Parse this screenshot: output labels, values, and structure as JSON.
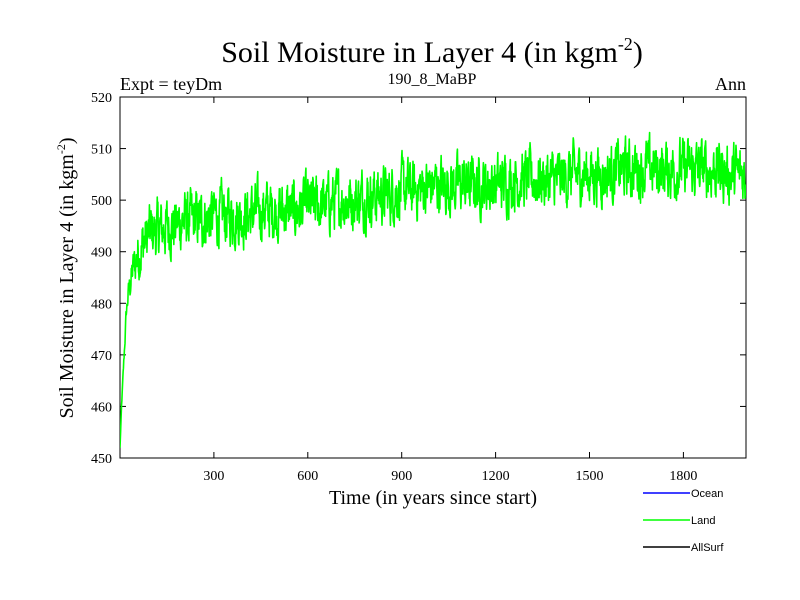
{
  "chart_data": {
    "type": "line",
    "title_main": "Soil Moisture in Layer 4 (in kgm",
    "title_sup": "-2",
    "title_close": ")",
    "subtitle_left": "Expt = teyDm",
    "subtitle_center": "190_8_MaBP",
    "subtitle_right": "Ann",
    "xlabel": "Time (in years since start)",
    "ylabel_main": "Soil Moisture in Layer 4 (in kgm",
    "ylabel_sup": "-2",
    "ylabel_close": ")",
    "xlim": [
      0,
      2000
    ],
    "ylim": [
      450,
      520
    ],
    "xticks": [
      300,
      600,
      900,
      1200,
      1500,
      1800
    ],
    "xtick_labels": [
      "300",
      "600",
      "900",
      "1200",
      "1500",
      "1800"
    ],
    "yticks": [
      450,
      460,
      470,
      480,
      490,
      500,
      510,
      520
    ],
    "ytick_labels": [
      "450",
      "460",
      "470",
      "480",
      "490",
      "500",
      "510",
      "520"
    ],
    "legend": [
      {
        "name": "Ocean",
        "color": "#0000ff"
      },
      {
        "name": "Land",
        "color": "#00ff00"
      },
      {
        "name": "AllSurf",
        "color": "#000000"
      }
    ],
    "series": [
      {
        "name": "Land",
        "color": "#00ff00",
        "x": [
          0,
          5,
          10,
          15,
          20,
          25,
          30,
          40,
          50,
          60,
          70,
          80,
          90,
          100,
          125,
          150,
          175,
          200,
          250,
          300,
          350,
          400,
          450,
          500,
          550,
          600,
          650,
          700,
          750,
          800,
          850,
          900,
          950,
          1000,
          1050,
          1100,
          1150,
          1200,
          1250,
          1300,
          1350,
          1400,
          1450,
          1500,
          1550,
          1600,
          1650,
          1700,
          1750,
          1800,
          1850,
          1900,
          1950,
          2000
        ],
        "values": [
          452,
          460,
          466,
          472,
          478,
          481,
          483,
          486,
          488,
          490,
          491,
          492,
          493,
          494,
          494,
          495,
          495,
          496,
          496,
          497,
          497,
          497,
          498,
          498,
          498,
          499,
          499,
          500,
          500,
          501,
          501,
          502,
          502,
          503,
          503,
          503,
          503,
          503,
          504,
          504,
          504,
          504,
          505,
          505,
          505,
          506,
          506,
          506,
          506,
          506,
          506,
          506,
          505,
          505
        ],
        "noise_amplitude": 8,
        "samples": 2000
      },
      {
        "name": "Ocean",
        "color": "#0000ff",
        "x": [],
        "values": []
      },
      {
        "name": "AllSurf",
        "color": "#000000",
        "x": [],
        "values": []
      }
    ]
  }
}
